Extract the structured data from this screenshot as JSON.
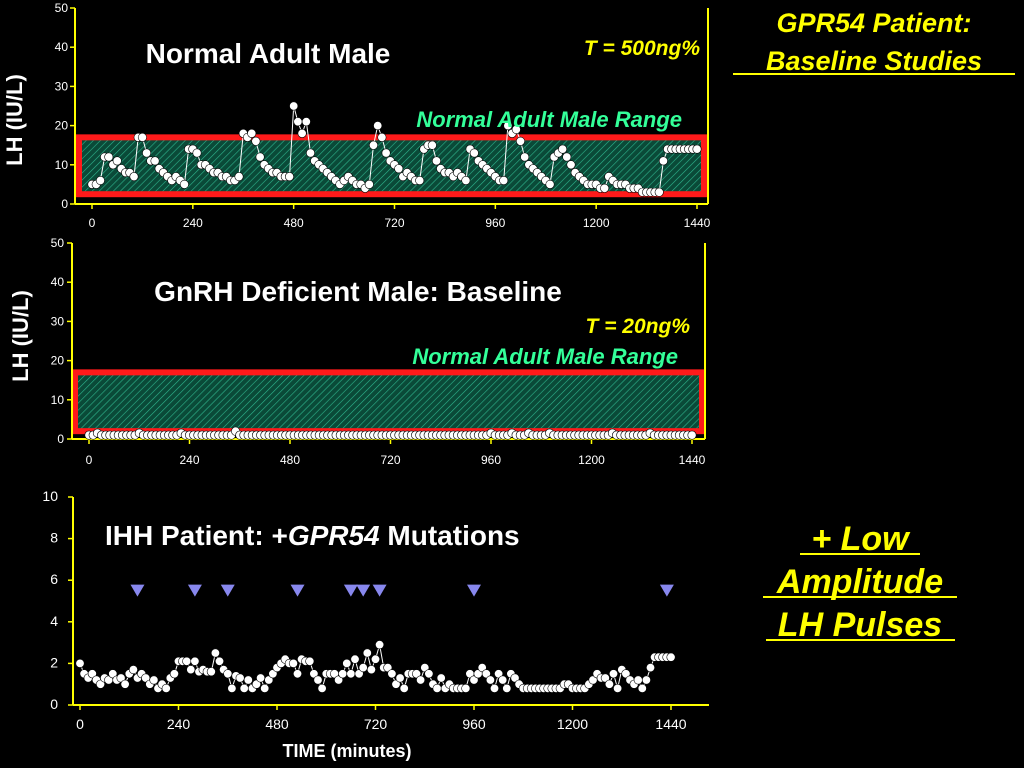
{
  "slide": {
    "title_lines": [
      "GPR54 Patient:",
      "Baseline Studies"
    ],
    "callout_lines": [
      "+ Low",
      "Amplitude",
      "LH Pulses"
    ],
    "colors": {
      "background": "#000000",
      "axis": "#ffff00",
      "title_text": "#ffff00",
      "range_label": "#33ff99",
      "range_border": "#ff1a1a",
      "range_fill": "#0a4a38",
      "points": "#ffffff",
      "arrow": "#8888ee"
    }
  },
  "chart_data": [
    {
      "type": "line",
      "title": "Normal Adult Male",
      "annotation": "T = 500ng%",
      "range_label": "Normal Adult Male Range",
      "range_band": [
        2.5,
        17
      ],
      "ylabel": "LH (IU/L)",
      "xlabel": "",
      "xlim": [
        0,
        1440
      ],
      "ylim": [
        0,
        50
      ],
      "xticks": [
        0,
        240,
        480,
        720,
        960,
        1200,
        1440
      ],
      "yticks": [
        0,
        10,
        20,
        30,
        40,
        50
      ],
      "series": [
        {
          "x": [
            0,
            10,
            20,
            30,
            40,
            50,
            60,
            70,
            80,
            90,
            100,
            110,
            120,
            130,
            140,
            150,
            160,
            170,
            180,
            190,
            200,
            210,
            220,
            230,
            240,
            250,
            260,
            270,
            280,
            290,
            300,
            310,
            320,
            330,
            340,
            350,
            360,
            370,
            380,
            390,
            400,
            410,
            420,
            430,
            440,
            450,
            460,
            470,
            480,
            490,
            500,
            510,
            520,
            530,
            540,
            550,
            560,
            570,
            580,
            590,
            600,
            610,
            620,
            630,
            640,
            650,
            660,
            670,
            680,
            690,
            700,
            710,
            720,
            730,
            740,
            750,
            760,
            770,
            780,
            790,
            800,
            810,
            820,
            830,
            840,
            850,
            860,
            870,
            880,
            890,
            900,
            910,
            920,
            930,
            940,
            950,
            960,
            970,
            980,
            990,
            1000,
            1010,
            1020,
            1030,
            1040,
            1050,
            1060,
            1070,
            1080,
            1090,
            1100,
            1110,
            1120,
            1130,
            1140,
            1150,
            1160,
            1170,
            1180,
            1190,
            1200,
            1210,
            1220,
            1230,
            1240,
            1250,
            1260,
            1270,
            1280,
            1290,
            1300,
            1310,
            1320,
            1330,
            1340,
            1350,
            1360,
            1370,
            1380,
            1390,
            1400,
            1410,
            1420,
            1430,
            1440
          ],
          "y": [
            5,
            5,
            6,
            12,
            12,
            10,
            11,
            9,
            8,
            8,
            7,
            17,
            17,
            13,
            11,
            11,
            9,
            8,
            7,
            6,
            7,
            6,
            5,
            14,
            14,
            13,
            10,
            10,
            9,
            8,
            8,
            7,
            7,
            6,
            6,
            7,
            18,
            17,
            18,
            16,
            12,
            10,
            9,
            8,
            8,
            7,
            7,
            7,
            25,
            21,
            18,
            21,
            13,
            11,
            10,
            9,
            8,
            7,
            6,
            5,
            6,
            7,
            6,
            5,
            5,
            4,
            5,
            15,
            20,
            17,
            13,
            11,
            10,
            9,
            7,
            8,
            7,
            6,
            6,
            14,
            15,
            15,
            11,
            9,
            8,
            8,
            7,
            8,
            7,
            6,
            14,
            13,
            11,
            10,
            9,
            8,
            7,
            6,
            6,
            20,
            18,
            19,
            16,
            12,
            10,
            9,
            8,
            7,
            6,
            5,
            12,
            13,
            14,
            12,
            10,
            8,
            7,
            6,
            5,
            5,
            5,
            4,
            4,
            7,
            6,
            5,
            5,
            5,
            4,
            4,
            4,
            3,
            3,
            3,
            3,
            3,
            11,
            14,
            14,
            14,
            14,
            14,
            14,
            14,
            14
          ]
        }
      ]
    },
    {
      "type": "line",
      "title": "GnRH Deficient Male: Baseline",
      "annotation": "T = 20ng%",
      "range_label": "Normal Adult Male Range",
      "range_band": [
        2,
        17
      ],
      "ylabel": "LH (IU/L)",
      "xlabel": "",
      "xlim": [
        0,
        1440
      ],
      "ylim": [
        0,
        50
      ],
      "xticks": [
        0,
        240,
        480,
        720,
        960,
        1200,
        1440
      ],
      "yticks": [
        0,
        10,
        20,
        30,
        40,
        50
      ],
      "series": [
        {
          "x": [
            0,
            10,
            20,
            30,
            40,
            50,
            60,
            70,
            80,
            90,
            100,
            110,
            120,
            130,
            140,
            150,
            160,
            170,
            180,
            190,
            200,
            210,
            220,
            230,
            240,
            250,
            260,
            270,
            280,
            290,
            300,
            310,
            320,
            330,
            340,
            350,
            360,
            370,
            380,
            390,
            400,
            410,
            420,
            430,
            440,
            450,
            460,
            470,
            480,
            490,
            500,
            510,
            520,
            530,
            540,
            550,
            560,
            570,
            580,
            590,
            600,
            610,
            620,
            630,
            640,
            650,
            660,
            670,
            680,
            690,
            700,
            710,
            720,
            730,
            740,
            750,
            760,
            770,
            780,
            790,
            800,
            810,
            820,
            830,
            840,
            850,
            860,
            870,
            880,
            890,
            900,
            910,
            920,
            930,
            940,
            950,
            960,
            970,
            980,
            990,
            1000,
            1010,
            1020,
            1030,
            1040,
            1050,
            1060,
            1070,
            1080,
            1090,
            1100,
            1110,
            1120,
            1130,
            1140,
            1150,
            1160,
            1170,
            1180,
            1190,
            1200,
            1210,
            1220,
            1230,
            1240,
            1250,
            1260,
            1270,
            1280,
            1290,
            1300,
            1310,
            1320,
            1330,
            1340,
            1350,
            1360,
            1370,
            1380,
            1390,
            1400,
            1410,
            1420,
            1430,
            1440
          ],
          "y": [
            1,
            1,
            1.5,
            1,
            1,
            1,
            1,
            1,
            1,
            1,
            1,
            1,
            1.5,
            1,
            1,
            1,
            1,
            1,
            1,
            1,
            1,
            1,
            1.5,
            1,
            1,
            1,
            1,
            1,
            1,
            1,
            1,
            1,
            1,
            1,
            1,
            2,
            1,
            1,
            1,
            1,
            1,
            1,
            1,
            1,
            1,
            1,
            1,
            1,
            1,
            1,
            1,
            1,
            1,
            1,
            1,
            1,
            1,
            1,
            1,
            1,
            1,
            1,
            1,
            1,
            1,
            1,
            1,
            1,
            1,
            1,
            1,
            1,
            1,
            1,
            1,
            1,
            1,
            1,
            1,
            1,
            1,
            1,
            1,
            1,
            1,
            1,
            1,
            1,
            1,
            1,
            1,
            1,
            1,
            1,
            1,
            1,
            1.5,
            1,
            1,
            1,
            1,
            1.5,
            1,
            1,
            1,
            1.5,
            1,
            1,
            1,
            1,
            1.5,
            1,
            1,
            1,
            1,
            1,
            1,
            1,
            1,
            1,
            1,
            1,
            1,
            1,
            1,
            1.5,
            1,
            1,
            1,
            1,
            1,
            1,
            1,
            1,
            1.5,
            1,
            1,
            1,
            1,
            1,
            1,
            1,
            1,
            1,
            1
          ]
        }
      ]
    },
    {
      "type": "line",
      "title": "IHH Patient: +GPR54 Mutations",
      "title_parts": [
        "IHH Patient: +",
        "GPR54",
        " Mutations"
      ],
      "ylabel": "",
      "xlabel": "TIME (minutes)",
      "xlim": [
        0,
        1440
      ],
      "ylim": [
        0,
        10
      ],
      "xticks": [
        0,
        240,
        480,
        720,
        960,
        1200,
        1440
      ],
      "yticks": [
        0,
        2,
        4,
        6,
        8,
        10
      ],
      "pulse_markers_x": [
        140,
        280,
        360,
        530,
        660,
        690,
        730,
        960,
        1430
      ],
      "pulse_marker_y": 5.5,
      "series": [
        {
          "x": [
            0,
            10,
            20,
            30,
            40,
            50,
            60,
            70,
            80,
            90,
            100,
            110,
            120,
            130,
            140,
            150,
            160,
            170,
            180,
            190,
            200,
            210,
            220,
            230,
            240,
            250,
            260,
            270,
            280,
            290,
            300,
            310,
            320,
            330,
            340,
            350,
            360,
            370,
            380,
            390,
            400,
            410,
            420,
            430,
            440,
            450,
            460,
            470,
            480,
            490,
            500,
            510,
            520,
            530,
            540,
            550,
            560,
            570,
            580,
            590,
            600,
            610,
            620,
            630,
            640,
            650,
            660,
            670,
            680,
            690,
            700,
            710,
            720,
            730,
            740,
            750,
            760,
            770,
            780,
            790,
            800,
            810,
            820,
            830,
            840,
            850,
            860,
            870,
            880,
            890,
            900,
            910,
            920,
            930,
            940,
            950,
            960,
            970,
            980,
            990,
            1000,
            1010,
            1020,
            1030,
            1040,
            1050,
            1060,
            1070,
            1080,
            1090,
            1100,
            1110,
            1120,
            1130,
            1140,
            1150,
            1160,
            1170,
            1180,
            1190,
            1200,
            1210,
            1220,
            1230,
            1240,
            1250,
            1260,
            1270,
            1280,
            1290,
            1300,
            1310,
            1320,
            1330,
            1340,
            1350,
            1360,
            1370,
            1380,
            1390,
            1400,
            1410,
            1420,
            1430,
            1440
          ],
          "y": [
            2,
            1.5,
            1.3,
            1.5,
            1.2,
            1,
            1.3,
            1.2,
            1.5,
            1.2,
            1.3,
            1,
            1.5,
            1.7,
            1.3,
            1.5,
            1.3,
            1,
            1.2,
            0.8,
            1,
            0.8,
            1.3,
            1.5,
            2.1,
            2.1,
            2.1,
            1.7,
            2.1,
            1.6,
            1.7,
            1.6,
            1.6,
            2.5,
            2.1,
            1.7,
            1.5,
            0.8,
            1.4,
            1.3,
            0.8,
            1.2,
            0.8,
            1,
            1.3,
            0.8,
            1.2,
            1.5,
            1.8,
            2,
            2.2,
            2,
            2,
            1.5,
            2.2,
            2.1,
            2.1,
            1.5,
            1.2,
            0.8,
            1.5,
            1.5,
            1.5,
            1.2,
            1.5,
            2,
            1.5,
            2.2,
            1.5,
            1.8,
            2.5,
            1.7,
            2.2,
            2.9,
            1.8,
            1.8,
            1.5,
            1,
            1.3,
            0.8,
            1.5,
            1.5,
            1.5,
            1.2,
            1.8,
            1.5,
            1,
            0.8,
            1.3,
            0.8,
            1,
            0.8,
            0.8,
            0.8,
            0.8,
            1.5,
            1.2,
            1.5,
            1.8,
            1.5,
            1.2,
            0.8,
            1.5,
            1.2,
            0.8,
            1.5,
            1.3,
            1,
            0.8,
            0.8,
            0.8,
            0.8,
            0.8,
            0.8,
            0.8,
            0.8,
            0.8,
            0.8,
            1,
            1,
            0.8,
            0.8,
            0.8,
            0.8,
            1,
            1.2,
            1.5,
            1.3,
            1.3,
            1,
            1.5,
            0.8,
            1.7,
            1.5,
            1.2,
            1,
            1.2,
            0.8,
            1.2,
            1.8,
            2.3,
            2.3,
            2.3,
            2.3,
            2.3
          ]
        }
      ]
    }
  ]
}
